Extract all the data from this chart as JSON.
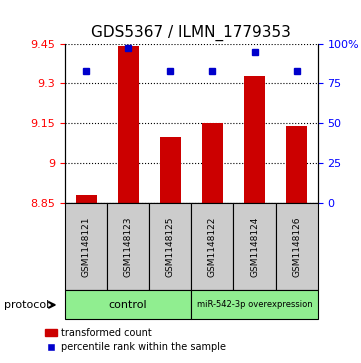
{
  "title": "GDS5367 / ILMN_1779353",
  "samples": [
    "GSM1148121",
    "GSM1148123",
    "GSM1148125",
    "GSM1148122",
    "GSM1148124",
    "GSM1148126"
  ],
  "transformed_counts": [
    8.88,
    9.44,
    9.1,
    9.15,
    9.33,
    9.14
  ],
  "percentile_ranks": [
    83,
    97,
    83,
    83,
    95,
    83
  ],
  "ymin": 8.85,
  "ymax": 9.45,
  "yticks": [
    8.85,
    9.0,
    9.15,
    9.3,
    9.45
  ],
  "ytick_labels": [
    "8.85",
    "9",
    "9.15",
    "9.3",
    "9.45"
  ],
  "right_yticks": [
    0,
    25,
    50,
    75,
    100
  ],
  "right_ytick_labels": [
    "0",
    "25",
    "50",
    "75",
    "100%"
  ],
  "bar_color": "#cc0000",
  "dot_color": "#0000cc",
  "bar_bottom": 8.85,
  "protocol_label": "protocol",
  "legend_bar_label": "transformed count",
  "legend_dot_label": "percentile rank within the sample",
  "grid_color": "#000000",
  "sample_box_color": "#cccccc",
  "title_fontsize": 11,
  "tick_fontsize": 8
}
